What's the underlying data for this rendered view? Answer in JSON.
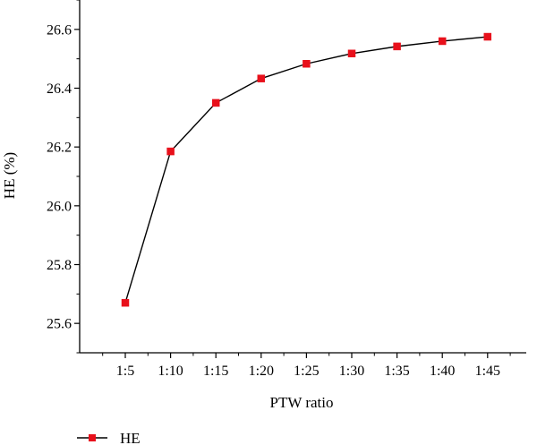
{
  "chart_data": {
    "type": "line",
    "title": "",
    "xlabel": "PTW ratio",
    "ylabel": "HE (%)",
    "categories": [
      "1:5",
      "1:10",
      "1:15",
      "1:20",
      "1:25",
      "1:30",
      "1:35",
      "1:40",
      "1:45"
    ],
    "series": [
      {
        "name": "HE",
        "values": [
          25.67,
          26.185,
          26.35,
          26.433,
          26.483,
          26.518,
          26.542,
          26.56,
          26.575
        ],
        "color": "#e8101b",
        "marker": "square"
      }
    ],
    "ylim": [
      25.5,
      26.7
    ],
    "yticks": [
      "25.6",
      "25.8",
      "26.0",
      "26.2",
      "26.4",
      "26.6"
    ],
    "grid": false,
    "legend_position": "bottom-left"
  }
}
